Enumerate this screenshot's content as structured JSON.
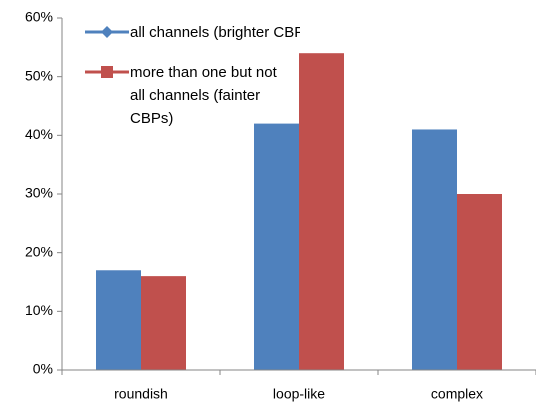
{
  "chart_data": {
    "type": "bar",
    "categories": [
      "roundish",
      "loop-like",
      "complex"
    ],
    "series": [
      {
        "name": "all channels (brighter CBPs)",
        "color": "#4f81bd",
        "values": [
          17,
          42,
          41
        ]
      },
      {
        "name": "more than one but not all channels (fainter CBPs)",
        "color": "#c0504d",
        "values": [
          16,
          54,
          30
        ]
      }
    ],
    "ylim": [
      0,
      60
    ],
    "yticks": [
      {
        "value": 0,
        "label": "0%"
      },
      {
        "value": 10,
        "label": "10%"
      },
      {
        "value": 20,
        "label": "20%"
      },
      {
        "value": 30,
        "label": "30%"
      },
      {
        "value": 40,
        "label": "40%"
      },
      {
        "value": 50,
        "label": "50%"
      },
      {
        "value": 60,
        "label": "60%"
      }
    ],
    "grid": false
  }
}
